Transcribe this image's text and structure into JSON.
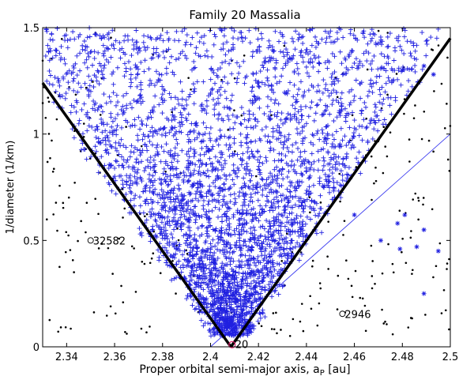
{
  "chart_data": {
    "type": "scatter",
    "title": "Family 20 Massalia",
    "xlabel": "Proper orbital semi-major axis, a",
    "xlabel_sub": "P",
    "xlabel_unit": " [au]",
    "ylabel": "1/diameter (1/km)",
    "xlim": [
      2.33,
      2.5
    ],
    "ylim": [
      0,
      1.5
    ],
    "x_ticks": [
      2.34,
      2.36,
      2.38,
      2.4,
      2.42,
      2.44,
      2.46,
      2.48,
      2.5
    ],
    "x_tick_labels": [
      "2.34",
      "2.36",
      "2.38",
      "2.4",
      "2.42",
      "2.44",
      "2.46",
      "2.48",
      "2.5"
    ],
    "y_ticks": [
      0,
      0.5,
      1,
      1.5
    ],
    "y_tick_labels": [
      "0",
      "0.5",
      "1",
      "1.5"
    ],
    "grid": false,
    "colors": {
      "member": "#2020e0",
      "background": "#000000",
      "parent": "#e0206a",
      "v_shape": "#000000",
      "inner_line": "#3a3af0"
    },
    "v_shape_lines": [
      {
        "x0": 2.4085,
        "y0": 0.0,
        "x1": 2.33,
        "y1": 1.24
      },
      {
        "x0": 2.4085,
        "y0": 0.0,
        "x1": 2.5,
        "y1": 1.45
      }
    ],
    "inner_line": {
      "x0": 2.4,
      "y0": 0.0,
      "x1": 2.5,
      "y1": 1.0
    },
    "parent_body": {
      "label": "20",
      "x": 2.409,
      "y": 0.01
    },
    "annotations": [
      {
        "label": "32582",
        "x": 2.35,
        "y": 0.5
      },
      {
        "label": "2946",
        "x": 2.455,
        "y": 0.155
      }
    ],
    "outliers_star": [
      [
        2.48,
        1.3
      ],
      [
        2.489,
        1.32
      ],
      [
        2.493,
        1.28
      ],
      [
        2.481,
        0.62
      ],
      [
        2.489,
        0.55
      ],
      [
        2.479,
        0.46
      ],
      [
        2.471,
        0.5
      ],
      [
        2.489,
        0.25
      ],
      [
        2.495,
        0.45
      ],
      [
        2.486,
        0.47
      ],
      [
        2.478,
        0.58
      ],
      [
        2.46,
        0.62
      ]
    ],
    "members_envelope": {
      "description_free": true,
      "apex_x": 2.4085,
      "left_slope_per_au": 16.0,
      "right_slope_per_au": 16.4,
      "y_range": [
        0.05,
        1.5
      ],
      "count": 3600
    },
    "background_count": 420
  }
}
